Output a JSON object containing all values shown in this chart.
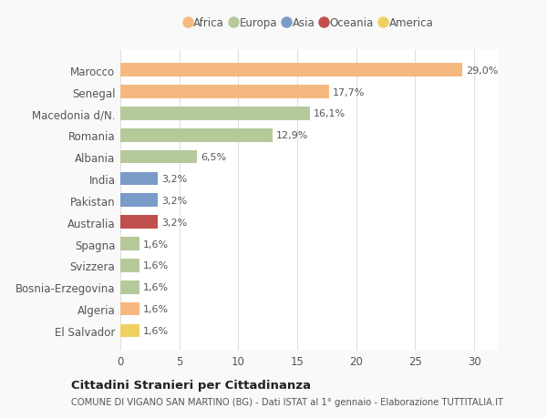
{
  "countries": [
    "Marocco",
    "Senegal",
    "Macedonia d/N.",
    "Romania",
    "Albania",
    "India",
    "Pakistan",
    "Australia",
    "Spagna",
    "Svizzera",
    "Bosnia-Erzegovina",
    "Algeria",
    "El Salvador"
  ],
  "values": [
    29.0,
    17.7,
    16.1,
    12.9,
    6.5,
    3.2,
    3.2,
    3.2,
    1.6,
    1.6,
    1.6,
    1.6,
    1.6
  ],
  "labels": [
    "29,0%",
    "17,7%",
    "16,1%",
    "12,9%",
    "6,5%",
    "3,2%",
    "3,2%",
    "3,2%",
    "1,6%",
    "1,6%",
    "1,6%",
    "1,6%",
    "1,6%"
  ],
  "colors": [
    "#f5b97f",
    "#f5b97f",
    "#b5c99a",
    "#b5c99a",
    "#b5c99a",
    "#7b9bc8",
    "#7b9bc8",
    "#c0504d",
    "#b5c99a",
    "#b5c99a",
    "#b5c99a",
    "#f5b97f",
    "#f0d060"
  ],
  "continent_colors": {
    "Africa": "#f5b97f",
    "Europa": "#b5c99a",
    "Asia": "#7b9bc8",
    "Oceania": "#c0504d",
    "America": "#f0d060"
  },
  "legend_labels": [
    "Africa",
    "Europa",
    "Asia",
    "Oceania",
    "America"
  ],
  "title": "Cittadini Stranieri per Cittadinanza",
  "subtitle": "COMUNE DI VIGANO SAN MARTINO (BG) - Dati ISTAT al 1° gennaio - Elaborazione TUTTITALIA.IT",
  "xlim": [
    0,
    32
  ],
  "xticks": [
    0,
    5,
    10,
    15,
    20,
    25,
    30
  ],
  "background_color": "#f9f9f9",
  "bar_background": "#ffffff"
}
